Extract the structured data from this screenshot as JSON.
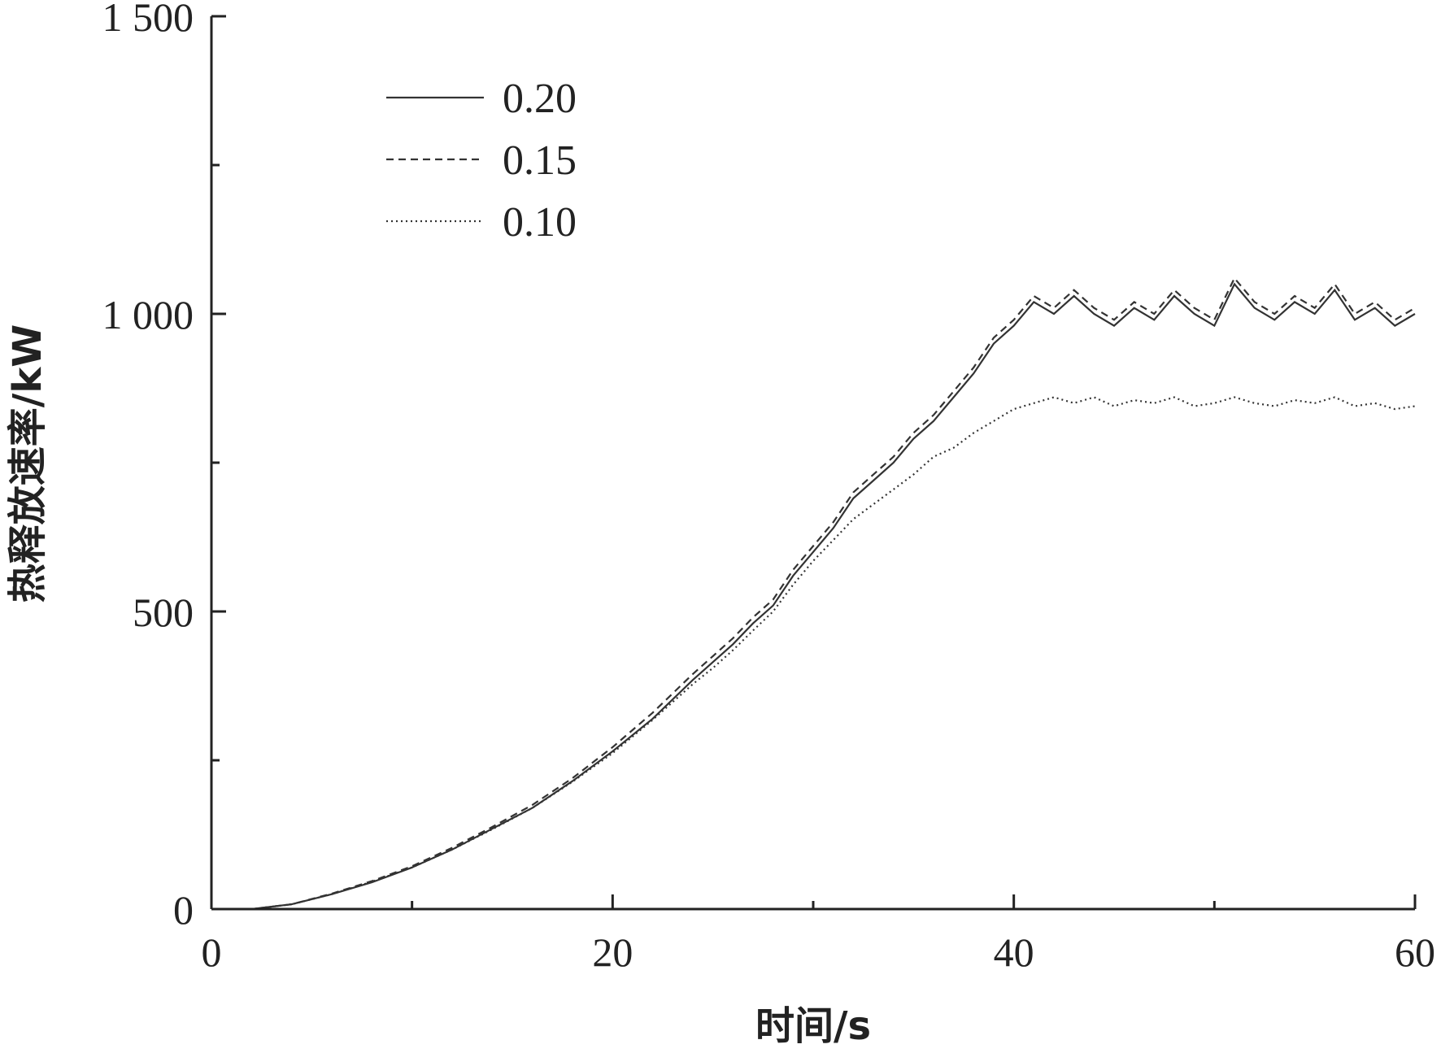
{
  "chart_data": {
    "type": "line",
    "xlabel": "时间/s",
    "ylabel": "热释放速率/kW",
    "xlim": [
      0,
      60
    ],
    "ylim": [
      0,
      1500
    ],
    "x_ticks": [
      {
        "value": 0,
        "label": "0"
      },
      {
        "value": 20,
        "label": "20"
      },
      {
        "value": 40,
        "label": "40"
      },
      {
        "value": 60,
        "label": "60"
      }
    ],
    "x_minor_ticks": [
      10,
      30,
      50
    ],
    "y_ticks": [
      {
        "value": 0,
        "label": "0"
      },
      {
        "value": 500,
        "label": "500"
      },
      {
        "value": 1000,
        "label": "1 000"
      },
      {
        "value": 1500,
        "label": "1 500"
      }
    ],
    "y_minor_ticks": [
      250,
      750,
      1250
    ],
    "grid": false,
    "legend_position": "top-left",
    "line_color": "#333333",
    "series": [
      {
        "name": "0.20",
        "style": "solid",
        "points": [
          [
            0,
            0
          ],
          [
            2,
            0
          ],
          [
            4,
            8
          ],
          [
            6,
            25
          ],
          [
            8,
            45
          ],
          [
            10,
            70
          ],
          [
            12,
            100
          ],
          [
            14,
            135
          ],
          [
            16,
            170
          ],
          [
            18,
            215
          ],
          [
            20,
            265
          ],
          [
            22,
            320
          ],
          [
            24,
            385
          ],
          [
            25,
            415
          ],
          [
            26,
            445
          ],
          [
            27,
            480
          ],
          [
            28,
            510
          ],
          [
            29,
            560
          ],
          [
            30,
            600
          ],
          [
            31,
            640
          ],
          [
            32,
            690
          ],
          [
            33,
            720
          ],
          [
            34,
            750
          ],
          [
            35,
            790
          ],
          [
            36,
            820
          ],
          [
            37,
            860
          ],
          [
            38,
            900
          ],
          [
            39,
            950
          ],
          [
            40,
            980
          ],
          [
            41,
            1020
          ],
          [
            42,
            1000
          ],
          [
            43,
            1030
          ],
          [
            44,
            1000
          ],
          [
            45,
            980
          ],
          [
            46,
            1010
          ],
          [
            47,
            990
          ],
          [
            48,
            1030
          ],
          [
            49,
            1000
          ],
          [
            50,
            980
          ],
          [
            51,
            1050
          ],
          [
            52,
            1010
          ],
          [
            53,
            990
          ],
          [
            54,
            1020
          ],
          [
            55,
            1000
          ],
          [
            56,
            1040
          ],
          [
            57,
            990
          ],
          [
            58,
            1010
          ],
          [
            59,
            980
          ],
          [
            60,
            1000
          ]
        ]
      },
      {
        "name": "0.15",
        "style": "dashed",
        "points": [
          [
            0,
            0
          ],
          [
            2,
            0
          ],
          [
            4,
            8
          ],
          [
            6,
            26
          ],
          [
            8,
            47
          ],
          [
            10,
            72
          ],
          [
            12,
            103
          ],
          [
            14,
            138
          ],
          [
            16,
            175
          ],
          [
            18,
            220
          ],
          [
            20,
            272
          ],
          [
            22,
            330
          ],
          [
            24,
            395
          ],
          [
            25,
            425
          ],
          [
            26,
            455
          ],
          [
            27,
            490
          ],
          [
            28,
            520
          ],
          [
            29,
            570
          ],
          [
            30,
            610
          ],
          [
            31,
            650
          ],
          [
            32,
            700
          ],
          [
            33,
            730
          ],
          [
            34,
            760
          ],
          [
            35,
            800
          ],
          [
            36,
            830
          ],
          [
            37,
            870
          ],
          [
            38,
            910
          ],
          [
            39,
            960
          ],
          [
            40,
            990
          ],
          [
            41,
            1030
          ],
          [
            42,
            1010
          ],
          [
            43,
            1040
          ],
          [
            44,
            1010
          ],
          [
            45,
            990
          ],
          [
            46,
            1020
          ],
          [
            47,
            1000
          ],
          [
            48,
            1040
          ],
          [
            49,
            1010
          ],
          [
            50,
            990
          ],
          [
            51,
            1060
          ],
          [
            52,
            1020
          ],
          [
            53,
            1000
          ],
          [
            54,
            1030
          ],
          [
            55,
            1010
          ],
          [
            56,
            1050
          ],
          [
            57,
            1000
          ],
          [
            58,
            1020
          ],
          [
            59,
            990
          ],
          [
            60,
            1010
          ]
        ]
      },
      {
        "name": "0.10",
        "style": "dotted",
        "points": [
          [
            0,
            0
          ],
          [
            2,
            0
          ],
          [
            4,
            8
          ],
          [
            6,
            25
          ],
          [
            8,
            46
          ],
          [
            10,
            70
          ],
          [
            12,
            100
          ],
          [
            14,
            134
          ],
          [
            16,
            170
          ],
          [
            18,
            214
          ],
          [
            20,
            262
          ],
          [
            22,
            318
          ],
          [
            24,
            378
          ],
          [
            25,
            405
          ],
          [
            26,
            435
          ],
          [
            27,
            468
          ],
          [
            28,
            500
          ],
          [
            29,
            545
          ],
          [
            30,
            585
          ],
          [
            31,
            620
          ],
          [
            32,
            655
          ],
          [
            33,
            680
          ],
          [
            34,
            705
          ],
          [
            35,
            730
          ],
          [
            36,
            760
          ],
          [
            37,
            775
          ],
          [
            38,
            800
          ],
          [
            39,
            820
          ],
          [
            40,
            840
          ],
          [
            41,
            850
          ],
          [
            42,
            860
          ],
          [
            43,
            850
          ],
          [
            44,
            860
          ],
          [
            45,
            845
          ],
          [
            46,
            855
          ],
          [
            47,
            850
          ],
          [
            48,
            860
          ],
          [
            49,
            845
          ],
          [
            50,
            850
          ],
          [
            51,
            860
          ],
          [
            52,
            850
          ],
          [
            53,
            845
          ],
          [
            54,
            855
          ],
          [
            55,
            850
          ],
          [
            56,
            860
          ],
          [
            57,
            845
          ],
          [
            58,
            850
          ],
          [
            59,
            840
          ],
          [
            60,
            845
          ]
        ]
      }
    ]
  }
}
